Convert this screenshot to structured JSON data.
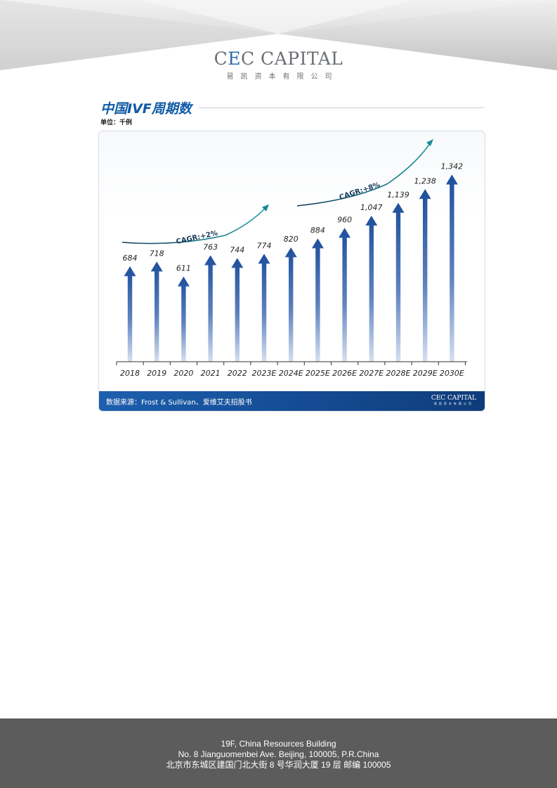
{
  "header": {
    "logo_main_prefix": "C",
    "logo_main_accent": "E",
    "logo_main_rest": "C CAPITAL",
    "logo_sub": "易凯资本有限公司"
  },
  "chart_title": "中国IVF周期数",
  "unit_label": "单位：千例",
  "chart_data": {
    "type": "bar",
    "categories": [
      "2018",
      "2019",
      "2020",
      "2021",
      "2022",
      "2023E",
      "2024E",
      "2025E",
      "2026E",
      "2027E",
      "2028E",
      "2029E",
      "2030E"
    ],
    "values": [
      684,
      718,
      611,
      763,
      744,
      774,
      820,
      884,
      960,
      1047,
      1139,
      1238,
      1342
    ],
    "value_labels": [
      "684",
      "718",
      "611",
      "763",
      "744",
      "774",
      "820",
      "884",
      "960",
      "1,047",
      "1,139",
      "1,238",
      "1,342"
    ],
    "bar_style": "arrow",
    "ylim": [
      0,
      1400
    ],
    "annotations": [
      {
        "text": "CAGR:+2%",
        "from": "2018",
        "to": "2023E"
      },
      {
        "text": "CAGR:+8%",
        "from": "2024E",
        "to": "2030E"
      }
    ],
    "grid": false,
    "colors": {
      "bar_top": "#1d4f9c",
      "bar_bottom": "#c9d7ee",
      "arrow_curve": "#0f3c52",
      "arrow_head": "#1a8a9a"
    }
  },
  "source": {
    "text": "数据来源：Frost & Sullivan、爱维艾夫招股书",
    "mini_logo_main": "CEC CAPITAL",
    "mini_logo_sub": "易凯资本有限公司"
  },
  "footer": {
    "line1": "19F, China Resources Building",
    "line2": "No. 8 Jianguomenbei Ave. Beijing, 100005, P.R.China",
    "line3": "北京市东城区建国门北大街 8 号华润大厦 19 层  邮编  100005"
  }
}
